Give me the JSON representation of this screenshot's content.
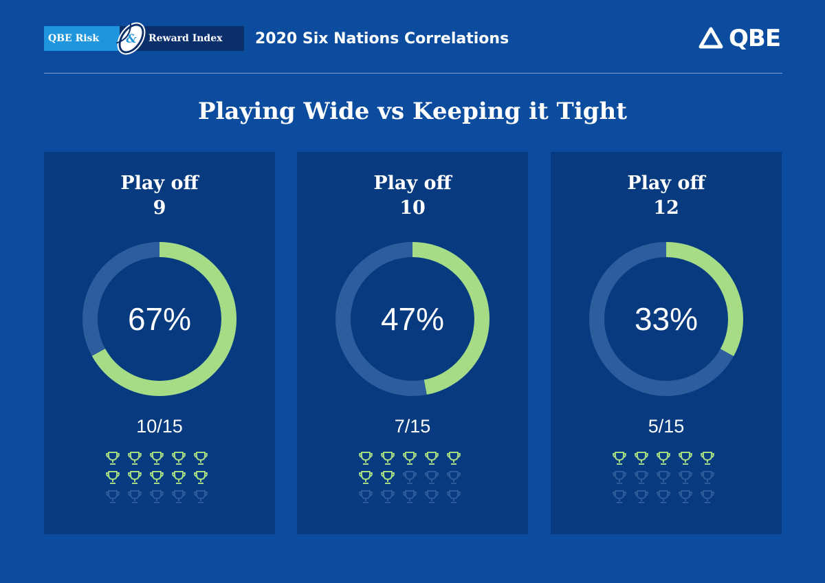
{
  "header": {
    "badge_left": "QBE Risk",
    "badge_amp": "&",
    "badge_right": "Reward Index",
    "title": "2020 Six Nations Correlations",
    "logo_text": "QBE"
  },
  "main_title": "Playing Wide vs Keeping it Tight",
  "colors": {
    "background": "#0b4c9e",
    "panel": "#083a80",
    "accent_green": "#a6dc86",
    "track": "#2c5d9c",
    "trophy_dim": "#2d5a98",
    "badge_blue": "#1e95dd",
    "badge_navy": "#0a2f6b"
  },
  "chart_data": [
    {
      "type": "donut",
      "title_line1": "Play off",
      "title_line2": "9",
      "value_percent": 67,
      "percent_label": "67%",
      "wins": 10,
      "total": 15,
      "fraction_label": "10/15"
    },
    {
      "type": "donut",
      "title_line1": "Play off",
      "title_line2": "10",
      "value_percent": 47,
      "percent_label": "47%",
      "wins": 7,
      "total": 15,
      "fraction_label": "7/15"
    },
    {
      "type": "donut",
      "title_line1": "Play off",
      "title_line2": "12",
      "value_percent": 33,
      "percent_label": "33%",
      "wins": 5,
      "total": 15,
      "fraction_label": "5/15"
    }
  ],
  "icons": {
    "trophy": "trophy-icon",
    "ball": "rugby-ball-icon",
    "logo": "qbe-logo-icon"
  }
}
